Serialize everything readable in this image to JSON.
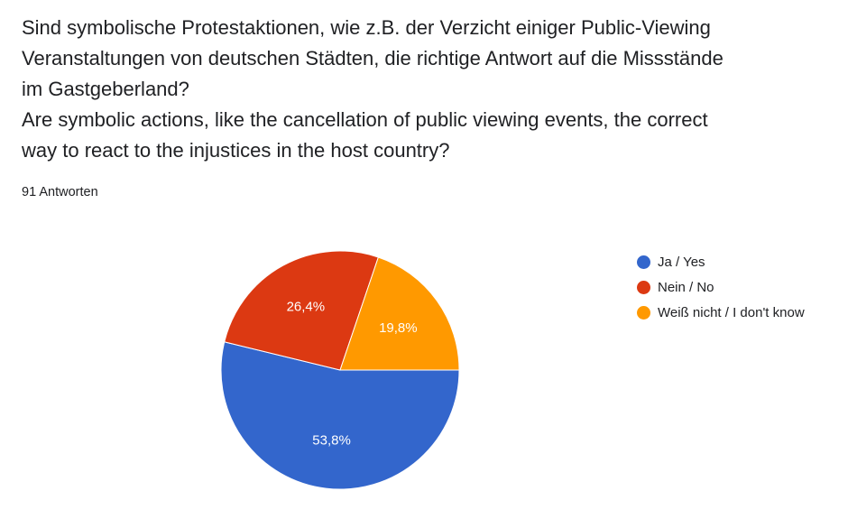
{
  "question": {
    "line1": "Sind symbolische Protestaktionen, wie z.B. der Verzicht einiger Public-Viewing",
    "line2": "Veranstaltungen von deutschen Städten, die richtige Antwort auf die Missstände",
    "line3": "im Gastgeberland?",
    "line4": "Are symbolic actions, like the cancellation of public viewing events, the correct",
    "line5": "way to react to the injustices in the host country?"
  },
  "responses_label": "91 Antworten",
  "chart_data": {
    "type": "pie",
    "categories": [
      "Ja / Yes",
      "Nein / No",
      "Weiß nicht / I don't know"
    ],
    "values": [
      53.8,
      26.4,
      19.8
    ],
    "labels": [
      "53,8%",
      "26,4%",
      "19,8%"
    ],
    "colors": [
      "#3366cc",
      "#dc3912",
      "#ff9900"
    ],
    "legend_position": "right"
  }
}
